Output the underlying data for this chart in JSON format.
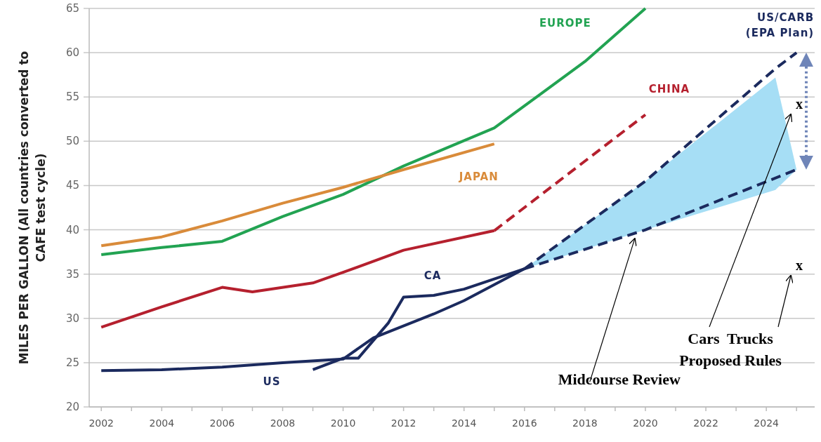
{
  "chart_data": {
    "type": "line",
    "ylabel": "MILES PER GALLON (All countries converted to CAFE test cycle)",
    "xlim": [
      2001.6,
      2025.6
    ],
    "ylim": [
      20,
      65
    ],
    "xticks": [
      2002,
      {
        "value": 2003,
        "label": null
      },
      2004,
      {
        "value": 2005,
        "label": null
      },
      2006,
      {
        "value": 2007,
        "label": null
      },
      2008,
      {
        "value": 2009,
        "label": null
      },
      2010,
      {
        "value": 2011,
        "label": null
      },
      2012,
      {
        "value": 2013,
        "label": null
      },
      2014,
      {
        "value": 2015,
        "label": null
      },
      2016,
      {
        "value": 2017,
        "label": null
      },
      2018,
      {
        "value": 2019,
        "label": null
      },
      2020,
      {
        "value": 2021,
        "label": null
      },
      2022,
      {
        "value": 2023,
        "label": null
      },
      2024,
      {
        "value": 2025,
        "label": null
      }
    ],
    "yticks": [
      20,
      25,
      30,
      35,
      40,
      45,
      50,
      55,
      60,
      65
    ],
    "grid": "y",
    "legend": false,
    "marker": "none",
    "series": [
      {
        "name": "EUROPE",
        "color": "#22a352",
        "x": [
          2002,
          2004,
          2006,
          2008,
          2010,
          2012,
          2015,
          2018,
          2020
        ],
        "values": [
          37.2,
          38,
          38.7,
          41.5,
          44,
          47.2,
          51.5,
          59,
          65
        ]
      },
      {
        "name": "JAPAN",
        "color": "#d98b3a",
        "x": [
          2002,
          2004,
          2006,
          2008,
          2010,
          2012,
          2015
        ],
        "values": [
          38.2,
          39.2,
          41,
          43,
          44.8,
          46.8,
          49.7
        ]
      },
      {
        "name": "CHINA",
        "color": "#b5202e",
        "x": [
          2002,
          2004,
          2006,
          2007,
          2009,
          2010,
          2012,
          2015
        ],
        "values": [
          29,
          31.3,
          33.5,
          33,
          34,
          35.2,
          37.7,
          39.9
        ]
      },
      {
        "color": "#b5202e",
        "line_style": "dashed",
        "x": [
          2015,
          2020
        ],
        "values": [
          39.9,
          53
        ]
      },
      {
        "name": "US",
        "color": "#1b2a5e",
        "x": [
          2002,
          2004,
          2006,
          2008,
          2010,
          2011,
          2013,
          2014,
          2016
        ],
        "values": [
          24.1,
          24.2,
          24.5,
          25,
          25.4,
          27.8,
          30.5,
          32,
          35.6
        ]
      },
      {
        "name": "CA",
        "color": "#1b2a5e",
        "x": [
          2009,
          2010,
          2010.5,
          2011.5,
          2012,
          2013,
          2014,
          2016
        ],
        "values": [
          24.2,
          25.5,
          25.5,
          29.5,
          32.4,
          32.6,
          33.3,
          35.6
        ]
      },
      {
        "name": "US/CARB (EPA Plan)",
        "color": "#1b2a5e",
        "line_style": "dashed",
        "x": [
          2016,
          2020,
          2024.3,
          2025
        ],
        "values": [
          35.6,
          45.5,
          58.2,
          60
        ],
        "lower": [
          35.6,
          40,
          44.5,
          46.8
        ],
        "upper": [
          35.6,
          45.5,
          57.2,
          46.8
        ]
      },
      {
        "color": "#1b2a5e",
        "line_style": "dashed",
        "x": [
          2016,
          2020,
          2025
        ],
        "values": [
          35.6,
          40,
          46.8
        ]
      }
    ],
    "annotations": [
      "x",
      "x",
      {
        "text": "Midcourse Review",
        "x": 2019.6,
        "y": 39.3
      },
      "Cars  Trucks\nProposed Rules"
    ]
  }
}
